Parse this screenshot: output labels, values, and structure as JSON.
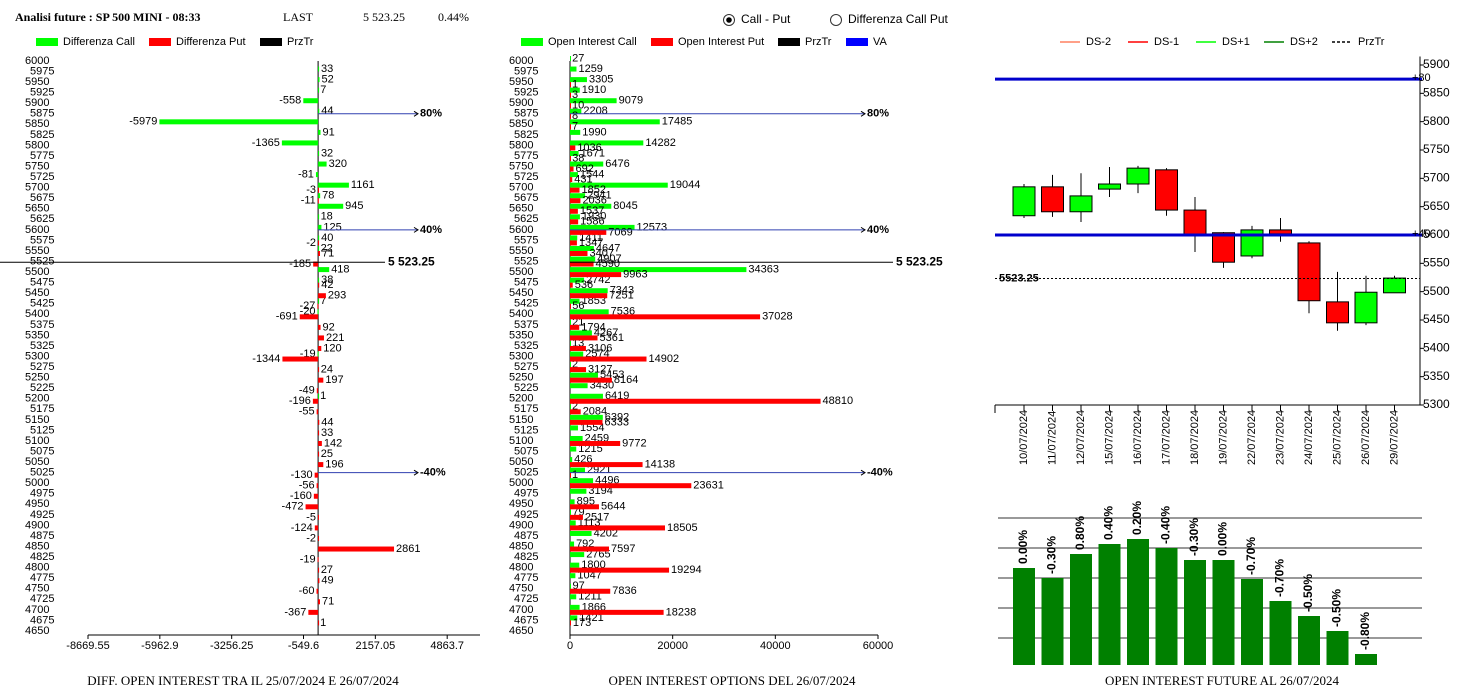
{
  "header": {
    "title": "Analisi future : SP 500 MINI - 08:33",
    "last_label": "LAST",
    "last": "5 523.25",
    "change": "0.44%"
  },
  "controls": {
    "options": [
      "Call - Put",
      "Differenza Call Put"
    ],
    "selected": 0
  },
  "chart_data": [
    {
      "type": "hbar_diff",
      "title": "DIFF. OPEN INTEREST TRA IL 25/07/2024 E 26/07/2024",
      "categories": [
        6000,
        5975,
        5950,
        5925,
        5900,
        5875,
        5850,
        5825,
        5800,
        5775,
        5750,
        5725,
        5700,
        5675,
        5650,
        5625,
        5600,
        5575,
        5550,
        5525,
        5500,
        5475,
        5450,
        5425,
        5400,
        5375,
        5350,
        5325,
        5300,
        5275,
        5250,
        5225,
        5200,
        5175,
        5150,
        5125,
        5100,
        5075,
        5050,
        5025,
        5000,
        4975,
        4950,
        4925,
        4900,
        4875,
        4850,
        4825,
        4800,
        4775,
        4750,
        4725,
        4700,
        4675,
        4650
      ],
      "series": [
        {
          "name": "Differenza Call",
          "color": "#00ff00",
          "values": [
            null,
            33,
            52,
            7,
            -558,
            44,
            -5979,
            91,
            -1365,
            32,
            320,
            -81,
            1161,
            78,
            945,
            18,
            125,
            40,
            22,
            null,
            418,
            38,
            null,
            7,
            -20,
            null,
            null,
            null,
            -19,
            null,
            null,
            null,
            1,
            null,
            null,
            null,
            null,
            null,
            null,
            null,
            null,
            null,
            null,
            null,
            null,
            null,
            null,
            null,
            null,
            null,
            null,
            null,
            null,
            null,
            null
          ]
        },
        {
          "name": "Differenza Put",
          "color": "#ff0000",
          "values": [
            null,
            null,
            null,
            null,
            null,
            null,
            null,
            null,
            null,
            null,
            null,
            null,
            -3,
            -11,
            null,
            null,
            null,
            -2,
            71,
            -185,
            null,
            42,
            293,
            -27,
            -691,
            92,
            221,
            120,
            -1344,
            24,
            197,
            -49,
            -196,
            -55,
            44,
            33,
            142,
            25,
            196,
            -130,
            -56,
            -160,
            -472,
            -5,
            -124,
            -2,
            2861,
            -19,
            27,
            49,
            -60,
            71,
            -367,
            1,
            null
          ]
        }
      ],
      "legend_extra": [
        {
          "name": "PrzTr",
          "color": "#000000"
        }
      ],
      "xlim": [
        -8669.55,
        6100
      ],
      "xticks": [
        -8669.55,
        -5962.9,
        -3256.25,
        -549.6,
        2157.05,
        4863.7
      ],
      "ref_lines": [
        {
          "value": 5875,
          "label": "80%"
        },
        {
          "value": 5600,
          "label": "40%"
        },
        {
          "value": 5025,
          "label": "-40%"
        }
      ],
      "last": {
        "value": 5523.25,
        "label": "5 523.25"
      }
    },
    {
      "type": "hbar_oi",
      "title": "OPEN INTEREST OPTIONS DEL 26/07/2024",
      "categories": [
        6000,
        5975,
        5950,
        5925,
        5900,
        5875,
        5850,
        5825,
        5800,
        5775,
        5750,
        5725,
        5700,
        5675,
        5650,
        5625,
        5600,
        5575,
        5550,
        5525,
        5500,
        5475,
        5450,
        5425,
        5400,
        5375,
        5350,
        5325,
        5300,
        5275,
        5250,
        5225,
        5200,
        5175,
        5150,
        5125,
        5100,
        5075,
        5050,
        5025,
        5000,
        4975,
        4950,
        4925,
        4900,
        4875,
        4850,
        4825,
        4800,
        4775,
        4750,
        4725,
        4700,
        4675,
        4650
      ],
      "series": [
        {
          "name": "Open Interest Call",
          "color": "#00ff00",
          "values": [
            27,
            1259,
            3305,
            1910,
            9079,
            2208,
            17485,
            1990,
            14282,
            1671,
            6476,
            1544,
            19044,
            2941,
            8045,
            1930,
            12573,
            1411,
            4647,
            4907,
            34363,
            2742,
            7343,
            1853,
            7536,
            21,
            4267,
            13,
            2574,
            2,
            5453,
            3430,
            6419,
            2,
            6392,
            1554,
            2459,
            1215,
            426,
            2921,
            4496,
            3194,
            895,
            79,
            1113,
            4202,
            792,
            2765,
            1800,
            1047,
            97,
            1211,
            1866,
            1421,
            null
          ]
        },
        {
          "name": "Open Interest Put",
          "color": "#ff0000",
          "values": [
            null,
            null,
            1,
            3,
            10,
            8,
            7,
            null,
            1036,
            38,
            692,
            431,
            1852,
            2036,
            1537,
            1586,
            7069,
            1347,
            3407,
            4590,
            9963,
            536,
            7251,
            56,
            37028,
            1794,
            5361,
            3106,
            14902,
            3127,
            8164,
            null,
            48810,
            2084,
            6333,
            null,
            9772,
            null,
            14138,
            1,
            23631,
            null,
            5644,
            2517,
            18505,
            null,
            7597,
            null,
            19294,
            null,
            7836,
            null,
            18238,
            173,
            null
          ]
        }
      ],
      "legend_extra": [
        {
          "name": "PrzTr",
          "color": "#000000"
        },
        {
          "name": "VA",
          "color": "#0000ff"
        }
      ],
      "xlim": [
        0,
        60000
      ],
      "xticks": [
        0,
        20000,
        40000,
        60000
      ],
      "ref_lines": [
        {
          "value": 5875,
          "label": "80%"
        },
        {
          "value": 5600,
          "label": "40%"
        },
        {
          "value": 5025,
          "label": "-40%"
        }
      ],
      "last": {
        "value": 5523.25,
        "label": "5 523.25"
      }
    },
    {
      "type": "candlestick",
      "categories": [
        "10/07/2024",
        "11/07/2024",
        "12/07/2024",
        "15/07/2024",
        "16/07/2024",
        "17/07/2024",
        "18/07/2024",
        "19/07/2024",
        "22/07/2024",
        "23/07/2024",
        "24/07/2024",
        "25/07/2024",
        "26/07/2024",
        "29/07/2024"
      ],
      "open": [
        5634,
        5685,
        5641,
        5681,
        5690,
        5715,
        5644,
        5604,
        5563,
        5609,
        5586,
        5482,
        5445,
        5498
      ],
      "high": [
        5690,
        5706,
        5709,
        5720,
        5722,
        5718,
        5667,
        5605,
        5616,
        5630,
        5589,
        5535,
        5528,
        5528
      ],
      "low": [
        5630,
        5632,
        5623,
        5667,
        5674,
        5634,
        5570,
        5542,
        5559,
        5588,
        5462,
        5431,
        5441,
        5498
      ],
      "close": [
        5685,
        5641,
        5669,
        5690,
        5718,
        5644,
        5600,
        5552,
        5609,
        5602,
        5484,
        5445,
        5499,
        5524
      ],
      "up_color": "#00ff00",
      "down_color": "#ff0000",
      "ylim": [
        5300,
        5915
      ],
      "yticks": [
        5300,
        5350,
        5400,
        5450,
        5500,
        5550,
        5600,
        5650,
        5700,
        5750,
        5800,
        5850,
        5900
      ],
      "legend": [
        {
          "name": "DS-2",
          "color": "#ff8060",
          "dash": false
        },
        {
          "name": "DS-1",
          "color": "#ff0000",
          "dash": false
        },
        {
          "name": "DS+1",
          "color": "#00ff00",
          "dash": false
        },
        {
          "name": "DS+2",
          "color": "#008000",
          "dash": false
        },
        {
          "name": "PrzTr",
          "color": "#000000",
          "dash": true
        }
      ],
      "ref_lines": [
        {
          "value": 5875,
          "label": "+80"
        },
        {
          "value": 5600,
          "label": "+40"
        }
      ],
      "last": {
        "value": 5523.25,
        "label": "5523.25"
      }
    },
    {
      "type": "bar",
      "title": "OPEN INTEREST FUTURE AL 26/07/2024",
      "values": [
        97,
        87,
        111,
        121,
        126,
        117,
        105,
        105,
        86,
        64,
        49,
        34,
        11
      ],
      "change_labels": [
        "0.00%",
        "-0.30%",
        "0.80%",
        "0.40%",
        "0.20%",
        "-0.40%",
        "-0.30%",
        "0.00%",
        "-0.70%",
        "-0.70%",
        "-0.50%",
        "-0.50%",
        "-0.80%"
      ],
      "color": "#008000",
      "ylim": [
        0,
        147
      ],
      "grid": true
    }
  ]
}
